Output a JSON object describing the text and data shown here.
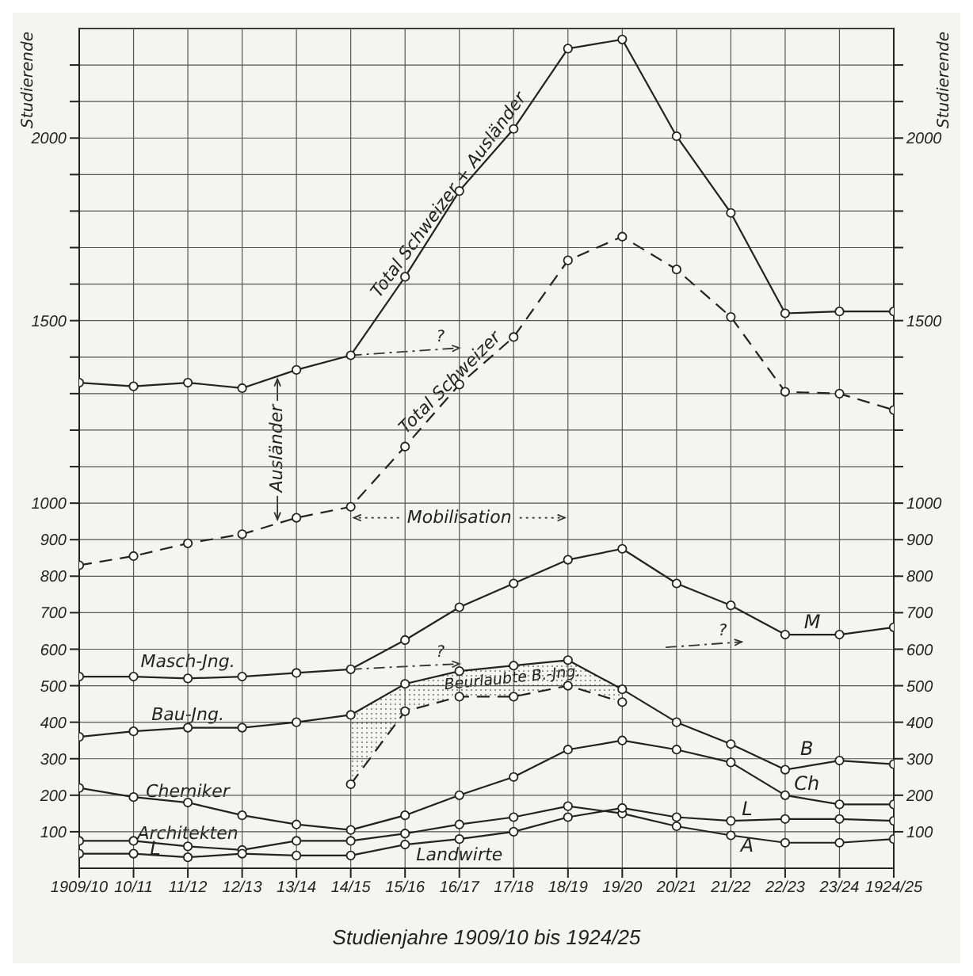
{
  "chart_data": {
    "type": "line",
    "xlabel": "Studienjahre 1909/10 bis 1924/25",
    "ylabel": "Studierende",
    "y2label": "Studierende",
    "categories": [
      "1909/10",
      "10/11",
      "11/12",
      "12/13",
      "13/14",
      "14/15",
      "15/16",
      "16/17",
      "17/18",
      "18/19",
      "19/20",
      "20/21",
      "21/22",
      "22/23",
      "23/24",
      "1924/25"
    ],
    "series": [
      {
        "name": "Total Schweizer + Ausländer",
        "color": "#222222",
        "line_style": "solid",
        "values": [
          1330,
          1320,
          1330,
          1315,
          1365,
          1405,
          1620,
          1855,
          2025,
          2245,
          2270,
          2005,
          1795,
          1520,
          1525,
          1525
        ]
      },
      {
        "name": "Total Schweizer",
        "color": "#222222",
        "line_style": "dashed",
        "values": [
          830,
          855,
          890,
          915,
          960,
          990,
          1155,
          1325,
          1455,
          1665,
          1730,
          1640,
          1510,
          1305,
          1300,
          1255
        ]
      },
      {
        "name": "Masch-Jng.",
        "color": "#222222",
        "line_style": "solid",
        "values": [
          525,
          525,
          520,
          525,
          535,
          545,
          625,
          715,
          780,
          845,
          875,
          780,
          720,
          640,
          640,
          660
        ]
      },
      {
        "name": "Bau-Jng.",
        "color": "#222222",
        "line_style": "solid",
        "values": [
          360,
          375,
          385,
          385,
          400,
          420,
          505,
          540,
          555,
          570,
          490,
          400,
          340,
          270,
          295,
          285
        ]
      },
      {
        "name": "Beurlaubte B.-Jng.",
        "color": "#222222",
        "line_style": "dashed",
        "values": [
          null,
          null,
          null,
          null,
          null,
          230,
          430,
          470,
          470,
          500,
          455,
          null,
          null,
          null,
          null,
          null
        ]
      },
      {
        "name": "Chemiker",
        "color": "#222222",
        "line_style": "solid",
        "values": [
          220,
          195,
          180,
          145,
          120,
          105,
          145,
          200,
          250,
          325,
          350,
          325,
          290,
          200,
          175,
          175
        ]
      },
      {
        "name": "Architekten",
        "color": "#222222",
        "line_style": "solid",
        "values": [
          75,
          75,
          60,
          50,
          75,
          75,
          95,
          120,
          140,
          170,
          150,
          115,
          90,
          70,
          70,
          80
        ]
      },
      {
        "name": "Landwirte",
        "color": "#222222",
        "line_style": "solid",
        "values": [
          40,
          40,
          30,
          40,
          35,
          35,
          65,
          80,
          100,
          140,
          165,
          140,
          130,
          135,
          135,
          130
        ]
      }
    ],
    "annotations": [
      "Ausländer",
      "Mobilisation",
      {
        "text": "?",
        "x": "14/15",
        "y": 1405
      },
      {
        "text": "?",
        "x": "14/15",
        "y": 545
      },
      "?",
      "M",
      "B",
      "Ch",
      "L",
      "A",
      "L"
    ],
    "ylim": [
      0,
      2300
    ],
    "yticks": [
      100,
      200,
      300,
      400,
      500,
      600,
      700,
      800,
      900,
      1000,
      {
        "value": 1100,
        "label": null
      },
      {
        "value": 1200,
        "label": null
      },
      {
        "value": 1300,
        "label": null
      },
      {
        "value": 1400,
        "label": null
      },
      1500,
      {
        "value": 1600,
        "label": null
      },
      {
        "value": 1700,
        "label": null
      },
      {
        "value": 1800,
        "label": null
      },
      {
        "value": 1900,
        "label": null
      },
      2000,
      {
        "value": 2100,
        "label": null
      },
      {
        "value": 2200,
        "label": null
      }
    ],
    "y2lim": [
      0,
      2300
    ],
    "y2ticks": [
      100,
      200,
      300,
      400,
      500,
      600,
      700,
      800,
      900,
      1000,
      {
        "value": 1100,
        "label": null
      },
      {
        "value": 1200,
        "label": null
      },
      {
        "value": 1300,
        "label": null
      },
      {
        "value": 1400,
        "label": null
      },
      1500,
      {
        "value": 1600,
        "label": null
      },
      {
        "value": 1700,
        "label": null
      },
      {
        "value": 1800,
        "label": null
      },
      {
        "value": 1900,
        "label": null
      },
      2000,
      {
        "value": 2100,
        "label": null
      },
      {
        "value": 2200,
        "label": null
      }
    ],
    "grid": true,
    "legend": false,
    "marker": "circle"
  }
}
